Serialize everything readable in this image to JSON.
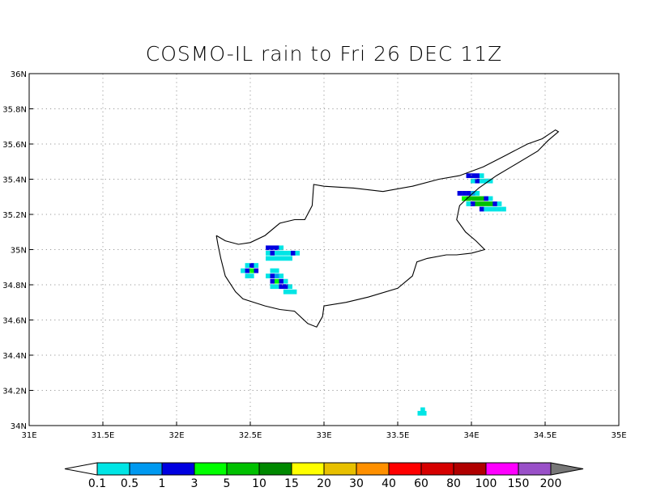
{
  "title": "COSMO-IL rain to Fri 26 DEC 11Z",
  "map": {
    "lon_range": [
      31,
      35
    ],
    "lat_range": [
      34,
      36
    ],
    "lon_ticks": [
      "31E",
      "31.5E",
      "32E",
      "32.5E",
      "33E",
      "33.5E",
      "34E",
      "34.5E",
      "35E"
    ],
    "lat_ticks": [
      "36N",
      "35.8N",
      "35.6N",
      "35.4N",
      "35.2N",
      "35N",
      "34.8N",
      "34.6N",
      "34.4N",
      "34.2N",
      "34N"
    ],
    "grid": true,
    "coastline": [
      [
        32.27,
        35.08
      ],
      [
        32.33,
        35.05
      ],
      [
        32.42,
        35.03
      ],
      [
        32.5,
        35.04
      ],
      [
        32.6,
        35.08
      ],
      [
        32.7,
        35.15
      ],
      [
        32.8,
        35.17
      ],
      [
        32.87,
        35.17
      ],
      [
        32.92,
        35.25
      ],
      [
        32.93,
        35.37
      ],
      [
        33.0,
        35.36
      ],
      [
        33.2,
        35.35
      ],
      [
        33.4,
        35.33
      ],
      [
        33.6,
        35.36
      ],
      [
        33.78,
        35.4
      ],
      [
        33.92,
        35.42
      ],
      [
        34.08,
        35.47
      ],
      [
        34.22,
        35.53
      ],
      [
        34.38,
        35.6
      ],
      [
        34.48,
        35.63
      ],
      [
        34.57,
        35.68
      ],
      [
        34.59,
        35.67
      ],
      [
        34.52,
        35.62
      ],
      [
        34.45,
        35.56
      ],
      [
        34.27,
        35.47
      ],
      [
        34.17,
        35.42
      ],
      [
        34.05,
        35.35
      ],
      [
        33.97,
        35.29
      ],
      [
        33.92,
        35.25
      ],
      [
        33.9,
        35.17
      ],
      [
        33.96,
        35.1
      ],
      [
        34.03,
        35.05
      ],
      [
        34.09,
        35.0
      ],
      [
        34.0,
        34.98
      ],
      [
        33.9,
        34.97
      ],
      [
        33.83,
        34.97
      ],
      [
        33.7,
        34.95
      ],
      [
        33.63,
        34.93
      ],
      [
        33.6,
        34.85
      ],
      [
        33.5,
        34.78
      ],
      [
        33.3,
        34.73
      ],
      [
        33.15,
        34.7
      ],
      [
        33.0,
        34.68
      ],
      [
        32.99,
        34.62
      ],
      [
        32.95,
        34.56
      ],
      [
        32.89,
        34.58
      ],
      [
        32.8,
        34.65
      ],
      [
        32.7,
        34.66
      ],
      [
        32.6,
        34.68
      ],
      [
        32.45,
        34.72
      ],
      [
        32.4,
        34.76
      ],
      [
        32.33,
        34.85
      ],
      [
        32.3,
        34.95
      ],
      [
        32.28,
        35.03
      ],
      [
        32.27,
        35.08
      ]
    ],
    "precip_cells": [
      [
        32.62,
        35.01,
        2
      ],
      [
        32.65,
        35.01,
        2
      ],
      [
        32.68,
        35.01,
        2
      ],
      [
        32.71,
        35.01,
        0
      ],
      [
        32.62,
        34.98,
        0
      ],
      [
        32.65,
        34.98,
        2
      ],
      [
        32.68,
        34.98,
        0
      ],
      [
        32.71,
        34.98,
        0
      ],
      [
        32.74,
        34.98,
        0
      ],
      [
        32.77,
        34.98,
        0
      ],
      [
        32.79,
        34.98,
        2
      ],
      [
        32.82,
        34.98,
        0
      ],
      [
        32.62,
        34.95,
        0
      ],
      [
        32.65,
        34.95,
        0
      ],
      [
        32.68,
        34.95,
        0
      ],
      [
        32.71,
        34.95,
        0
      ],
      [
        32.74,
        34.95,
        0
      ],
      [
        32.77,
        34.95,
        0
      ],
      [
        32.48,
        34.91,
        0
      ],
      [
        32.51,
        34.91,
        2
      ],
      [
        32.54,
        34.91,
        0
      ],
      [
        32.45,
        34.88,
        0
      ],
      [
        32.48,
        34.88,
        2
      ],
      [
        32.51,
        34.88,
        3
      ],
      [
        32.54,
        34.88,
        2
      ],
      [
        32.48,
        34.85,
        0
      ],
      [
        32.51,
        34.85,
        0
      ],
      [
        32.65,
        34.88,
        0
      ],
      [
        32.68,
        34.88,
        0
      ],
      [
        32.62,
        34.85,
        0
      ],
      [
        32.65,
        34.85,
        2
      ],
      [
        32.68,
        34.85,
        1
      ],
      [
        32.71,
        34.85,
        0
      ],
      [
        32.65,
        34.82,
        2
      ],
      [
        32.68,
        34.82,
        3
      ],
      [
        32.71,
        34.82,
        2
      ],
      [
        32.74,
        34.82,
        0
      ],
      [
        32.65,
        34.79,
        0
      ],
      [
        32.68,
        34.79,
        0
      ],
      [
        32.71,
        34.79,
        2
      ],
      [
        32.74,
        34.79,
        2
      ],
      [
        32.77,
        34.79,
        0
      ],
      [
        32.74,
        34.76,
        0
      ],
      [
        32.77,
        34.76,
        0
      ],
      [
        32.8,
        34.76,
        0
      ],
      [
        33.98,
        35.42,
        2
      ],
      [
        34.01,
        35.42,
        2
      ],
      [
        34.04,
        35.42,
        2
      ],
      [
        34.07,
        35.42,
        0
      ],
      [
        34.01,
        35.39,
        0
      ],
      [
        34.04,
        35.39,
        2
      ],
      [
        34.07,
        35.39,
        0
      ],
      [
        34.1,
        35.39,
        0
      ],
      [
        34.13,
        35.39,
        0
      ],
      [
        33.92,
        35.32,
        2
      ],
      [
        33.95,
        35.32,
        2
      ],
      [
        33.98,
        35.32,
        2
      ],
      [
        34.01,
        35.32,
        1
      ],
      [
        34.04,
        35.32,
        0
      ],
      [
        33.95,
        35.29,
        3
      ],
      [
        33.98,
        35.29,
        4
      ],
      [
        34.01,
        35.29,
        4
      ],
      [
        34.04,
        35.29,
        4
      ],
      [
        34.07,
        35.29,
        4
      ],
      [
        34.1,
        35.29,
        2
      ],
      [
        34.13,
        35.29,
        0
      ],
      [
        33.98,
        35.26,
        0
      ],
      [
        34.01,
        35.26,
        2
      ],
      [
        34.04,
        35.26,
        4
      ],
      [
        34.07,
        35.26,
        4
      ],
      [
        34.1,
        35.26,
        4
      ],
      [
        34.13,
        35.26,
        4
      ],
      [
        34.16,
        35.26,
        2
      ],
      [
        34.19,
        35.26,
        0
      ],
      [
        34.07,
        35.23,
        2
      ],
      [
        34.1,
        35.23,
        0
      ],
      [
        34.13,
        35.23,
        0
      ],
      [
        34.16,
        35.23,
        0
      ],
      [
        34.19,
        35.23,
        0
      ],
      [
        34.22,
        35.23,
        0
      ],
      [
        33.67,
        34.09,
        0
      ],
      [
        33.65,
        34.07,
        0
      ],
      [
        33.68,
        34.07,
        0
      ]
    ]
  },
  "colorbar": {
    "labels": [
      "0.1",
      "0.5",
      "1",
      "3",
      "5",
      "10",
      "15",
      "20",
      "30",
      "40",
      "60",
      "80",
      "100",
      "150",
      "200"
    ],
    "colors": [
      "#00e5e5",
      "#0099f0",
      "#0000e0",
      "#00ff00",
      "#00c000",
      "#008800",
      "#ffff00",
      "#e8c000",
      "#ff9000",
      "#ff0000",
      "#d60000",
      "#b00000",
      "#ff00ff",
      "#9950c8"
    ],
    "under_color": "#ffffff",
    "over_color": "#777777"
  }
}
